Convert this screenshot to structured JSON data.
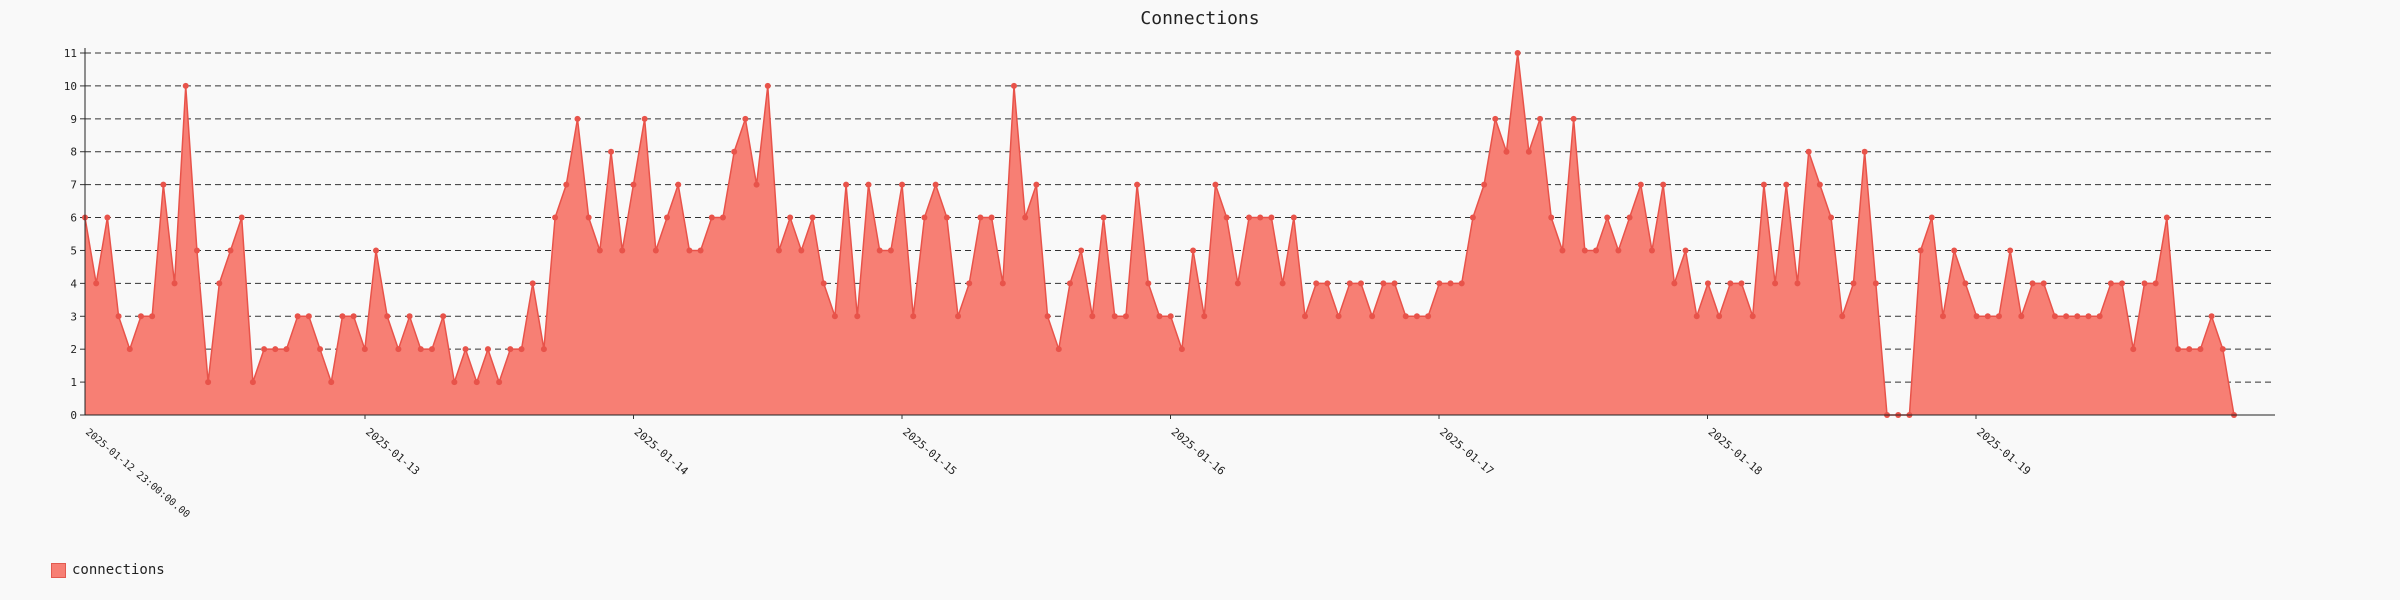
{
  "chart_data": {
    "type": "area",
    "title": "Connections",
    "xlabel": "",
    "ylabel": "",
    "ylim": [
      0,
      11
    ],
    "yticks": [
      0,
      1,
      2,
      3,
      4,
      5,
      6,
      7,
      8,
      9,
      10,
      11
    ],
    "grid": true,
    "legend_position": "bottom-left",
    "x_date_labels": [
      "2025-01-13",
      "2025-01-14",
      "2025-01-15",
      "2025-01-16",
      "2025-01-17",
      "2025-01-18",
      "2025-01-19"
    ],
    "x_start_label": "2025-01-12 23:00:00.00",
    "series": [
      {
        "name": "connections",
        "color": "#f77f74",
        "line_color": "#e8534a",
        "values": [
          6,
          4,
          6,
          3,
          2,
          3,
          3,
          7,
          4,
          10,
          5,
          1,
          4,
          5,
          6,
          1,
          2,
          2,
          2,
          3,
          3,
          2,
          1,
          3,
          3,
          2,
          5,
          3,
          2,
          3,
          2,
          2,
          3,
          1,
          2,
          1,
          2,
          1,
          2,
          2,
          4,
          2,
          6,
          7,
          9,
          6,
          5,
          8,
          5,
          7,
          9,
          5,
          6,
          7,
          5,
          5,
          6,
          6,
          8,
          9,
          7,
          10,
          5,
          6,
          5,
          6,
          4,
          3,
          7,
          3,
          7,
          5,
          5,
          7,
          3,
          6,
          7,
          6,
          3,
          4,
          6,
          6,
          4,
          10,
          6,
          7,
          3,
          2,
          4,
          5,
          3,
          6,
          3,
          3,
          7,
          4,
          3,
          3,
          2,
          5,
          3,
          7,
          6,
          4,
          6,
          6,
          6,
          4,
          6,
          3,
          4,
          4,
          3,
          4,
          4,
          3,
          4,
          4,
          3,
          3,
          3,
          4,
          4,
          4,
          6,
          7,
          9,
          8,
          11,
          8,
          9,
          6,
          5,
          9,
          5,
          5,
          6,
          5,
          6,
          7,
          5,
          7,
          4,
          5,
          3,
          4,
          3,
          4,
          4,
          3,
          7,
          4,
          7,
          4,
          8,
          7,
          6,
          3,
          4,
          8,
          4,
          0,
          0,
          0,
          5,
          6,
          3,
          5,
          4,
          3,
          3,
          3,
          5,
          3,
          4,
          4,
          3,
          3,
          3,
          3,
          3,
          4,
          4,
          2,
          4,
          4,
          6,
          2,
          2,
          2,
          3,
          2,
          0
        ]
      }
    ]
  }
}
